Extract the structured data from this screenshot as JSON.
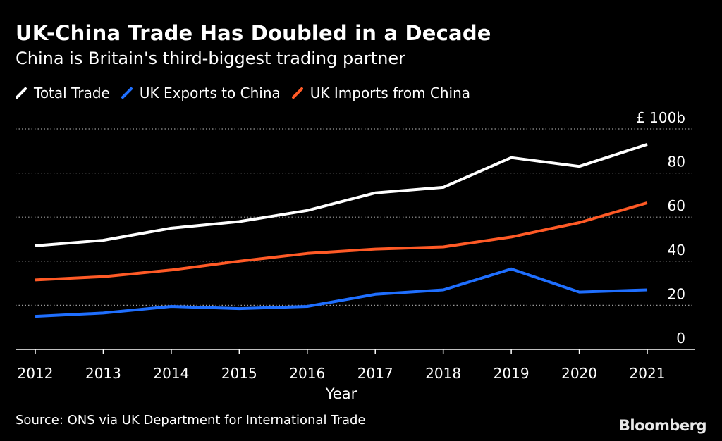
{
  "title": "UK-China Trade Has Doubled in a Decade",
  "subtitle": "China is Britain's third-biggest trading partner",
  "source": "Source: ONS via UK Department for International Trade",
  "brand": "Bloomberg",
  "colors": {
    "background": "#000000",
    "total": "#ffffff",
    "exports": "#1f6fff",
    "imports": "#ff5a26",
    "grid": "#9a9a9a",
    "text": "#ffffff"
  },
  "chart_data": {
    "type": "line",
    "title": "UK-China Trade Has Doubled in a Decade",
    "subtitle": "China is Britain's third-biggest trading partner",
    "xlabel": "Year",
    "ylabel": "",
    "x": [
      "2012",
      "2013",
      "2014",
      "2015",
      "2016",
      "2017",
      "2018",
      "2019",
      "2020",
      "2021"
    ],
    "ylim": [
      0,
      100
    ],
    "yticks": [
      0,
      20,
      40,
      60,
      80,
      100
    ],
    "ytick_labels": [
      "0",
      "20",
      "40",
      "60",
      "80",
      "£ 100b"
    ],
    "grid": true,
    "legend_position": "top-left",
    "series": [
      {
        "name": "Total Trade",
        "color": "#ffffff",
        "values": [
          47,
          49.5,
          55,
          58,
          63,
          71,
          73.5,
          87,
          83,
          93
        ]
      },
      {
        "name": "UK Exports to China",
        "color": "#1f6fff",
        "values": [
          15,
          16.5,
          19.5,
          18.5,
          19.5,
          25,
          27,
          36.5,
          26,
          27
        ]
      },
      {
        "name": "UK Imports from China",
        "color": "#ff5a26",
        "values": [
          31.5,
          33,
          36,
          40,
          43.5,
          45.5,
          46.5,
          51,
          57.5,
          66.5
        ]
      }
    ]
  }
}
